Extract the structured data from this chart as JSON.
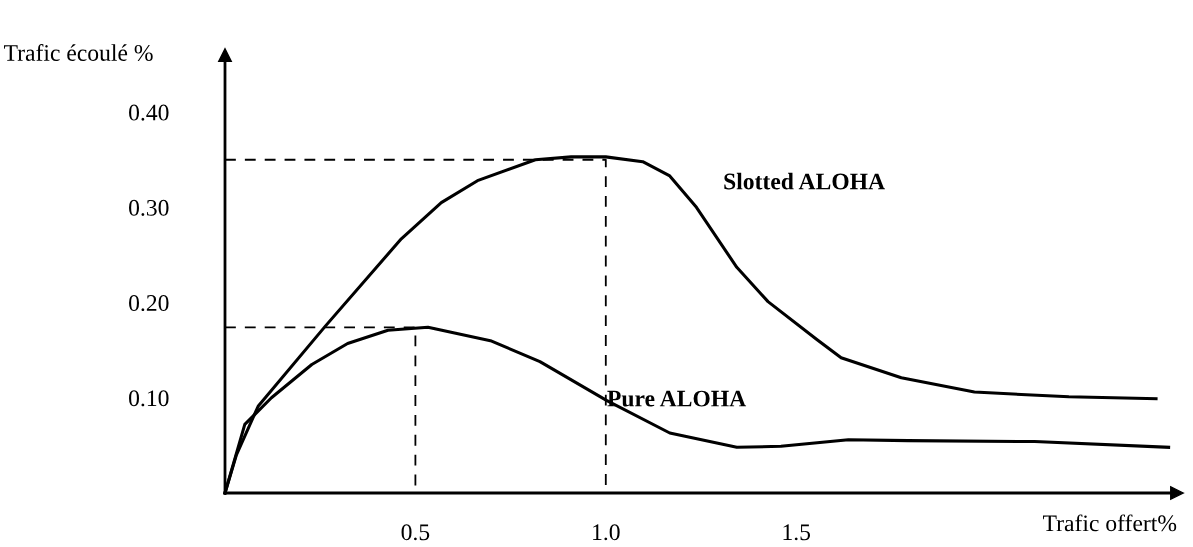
{
  "chart_data": {
    "type": "line",
    "xlabel": "Trafic offert%",
    "ylabel": "Trafic écoulé %",
    "xlim": [
      0,
      2.5
    ],
    "ylim": [
      0,
      0.46
    ],
    "xticks": [
      {
        "value": 0.5,
        "label": "0.5"
      },
      {
        "value": 1.0,
        "label": "1.0"
      },
      {
        "value": 1.5,
        "label": "1.5"
      }
    ],
    "yticks": [
      {
        "value": 0.1,
        "label": "0.10"
      },
      {
        "value": 0.2,
        "label": "0.20"
      },
      {
        "value": 0.3,
        "label": "0.30"
      },
      {
        "value": 0.4,
        "label": "0.40"
      }
    ],
    "grid": false,
    "legend": false,
    "marker": "none",
    "series": [
      {
        "name": "Slotted ALOHA",
        "color": "#000000",
        "line_style": "solid",
        "x": [
          0,
          0.03,
          0.087,
          0.263,
          0.463,
          0.568,
          0.663,
          0.815,
          0.909,
          1.0,
          1.097,
          1.168,
          1.238,
          1.344,
          1.426,
          1.555,
          1.618,
          1.776,
          1.968,
          2.216,
          2.445
        ],
        "values": [
          0,
          0.04,
          0.091,
          0.175,
          0.267,
          0.305,
          0.328,
          0.35,
          0.353,
          0.353,
          0.348,
          0.333,
          0.3,
          0.237,
          0.201,
          0.161,
          0.142,
          0.121,
          0.106,
          0.101,
          0.099
        ]
      },
      {
        "name": "Pure ALOHA",
        "color": "#000000",
        "line_style": "solid",
        "x": [
          0,
          0.052,
          0.122,
          0.228,
          0.322,
          0.428,
          0.533,
          0.697,
          0.827,
          1.003,
          1.168,
          1.344,
          1.46,
          1.637,
          1.794,
          2.126,
          2.478
        ],
        "values": [
          0,
          0.072,
          0.1,
          0.135,
          0.157,
          0.171,
          0.174,
          0.16,
          0.138,
          0.097,
          0.063,
          0.048,
          0.049,
          0.056,
          0.055,
          0.054,
          0.048
        ]
      },
      {
        "color": "#000000",
        "line_style": "dashed",
        "x": [
          0,
          1.0,
          1.0
        ],
        "values": [
          0.35,
          0.35,
          0
        ]
      },
      {
        "color": "#000000",
        "line_style": "dashed",
        "x": [
          0,
          0.5,
          0.5
        ],
        "values": [
          0.174,
          0.174,
          0
        ]
      }
    ]
  }
}
